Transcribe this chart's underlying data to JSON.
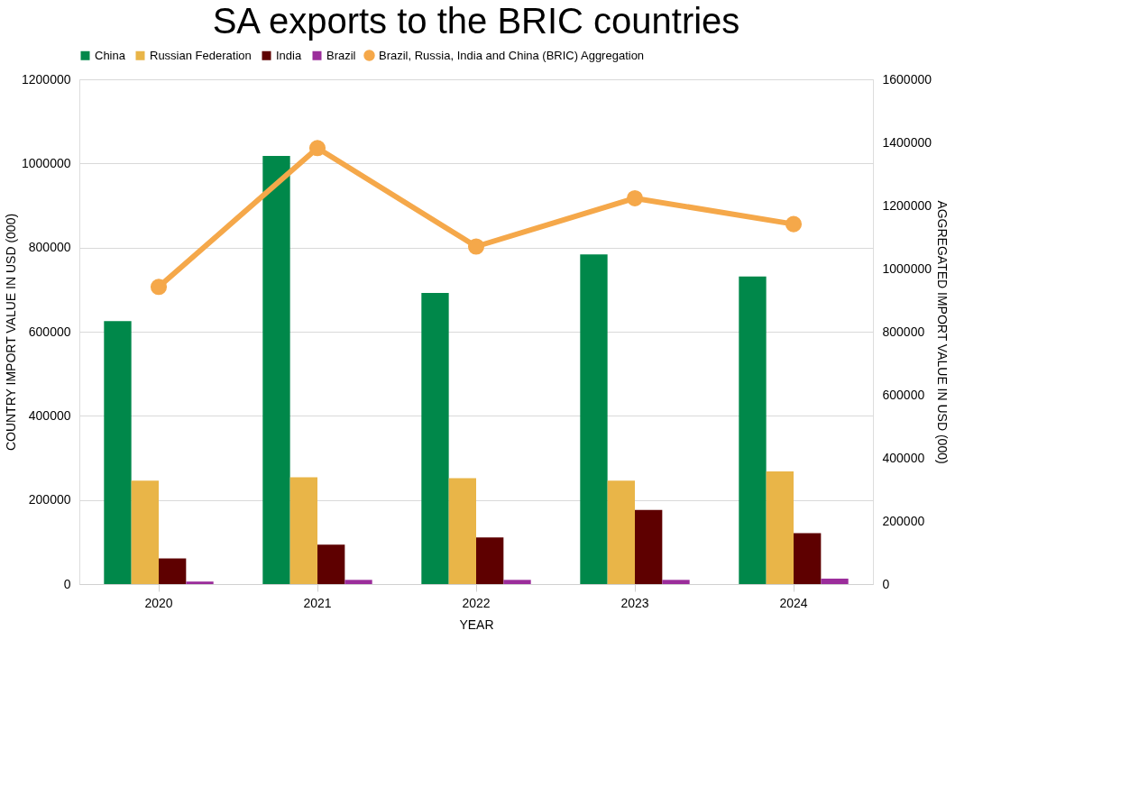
{
  "chart_data": {
    "type": "bar",
    "title": "SA exports to the BRIC countries",
    "xlabel": "YEAR",
    "ylabel": "COUNTRY  IMPORT VALUE IN USD (000)",
    "y2label": "AGGREGATED  IMPORT VALUE IN USD (000)",
    "categories": [
      "2020",
      "2021",
      "2022",
      "2023",
      "2024"
    ],
    "series": [
      {
        "name": "China",
        "color": "#00884a",
        "values": [
          625000,
          1018000,
          692000,
          784000,
          731000
        ]
      },
      {
        "name": "Russian Federation",
        "color": "#e9b548",
        "values": [
          246000,
          254000,
          252000,
          246000,
          268000
        ]
      },
      {
        "name": "India",
        "color": "#5e0000",
        "values": [
          61000,
          94000,
          111000,
          176000,
          121000
        ]
      },
      {
        "name": "Brazil",
        "color": "#9b2d9b",
        "values": [
          6000,
          10000,
          10000,
          10000,
          13000
        ]
      },
      {
        "name": "Brazil, Russia, India and China (BRIC) Aggregation",
        "color": "#f5a84a",
        "type": "line",
        "axis": "y2",
        "marker": "circle",
        "values": [
          942000,
          1382000,
          1070000,
          1223000,
          1141000
        ]
      }
    ],
    "ylim": [
      0,
      1200000
    ],
    "yticks": [
      0,
      200000,
      400000,
      600000,
      800000,
      1000000,
      1200000
    ],
    "y2lim": [
      0,
      1600000
    ],
    "y2ticks": [
      0,
      200000,
      400000,
      600000,
      800000,
      1000000,
      1200000,
      1400000,
      1600000
    ],
    "grid": "y",
    "legend": "top"
  }
}
